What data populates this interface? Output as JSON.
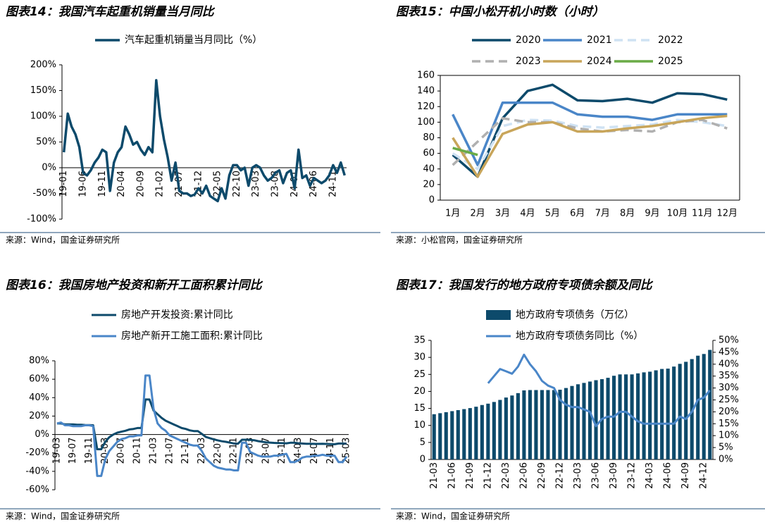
{
  "chart_data": [
    {
      "type": "line",
      "title": "图表14：我国汽车起重机销量当月同比",
      "source": "来源：Wind，国金证券研究所",
      "categories": [
        "19-01",
        null,
        null,
        null,
        null,
        "19-06",
        null,
        null,
        null,
        null,
        "19-11",
        null,
        null,
        null,
        null,
        "20-04",
        null,
        null,
        null,
        null,
        "20-09",
        null,
        null,
        null,
        null,
        "21-02",
        null,
        null,
        null,
        null,
        "21-07",
        null,
        null,
        null,
        null,
        "21-12",
        null,
        null,
        null,
        null,
        "22-05",
        null,
        null,
        null,
        null,
        "22-10",
        null,
        null,
        null,
        null,
        "23-03",
        null,
        null,
        null,
        null,
        "23-08",
        null,
        null,
        null,
        null,
        "24-01",
        null,
        null,
        null,
        null,
        "24-06",
        null,
        null,
        null,
        null,
        "24-11",
        null,
        null,
        null
      ],
      "series": [
        {
          "name": "汽车起重机销量当月同比（%）",
          "color": "#0d4a6b",
          "values": [
            30,
            105,
            80,
            65,
            40,
            -10,
            -15,
            -5,
            10,
            20,
            35,
            30,
            -45,
            10,
            30,
            40,
            80,
            65,
            45,
            50,
            35,
            25,
            40,
            30,
            170,
            100,
            55,
            20,
            -25,
            10,
            -45,
            -50,
            -50,
            -55,
            -52,
            -40,
            -50,
            -35,
            -55,
            -60,
            -65,
            -40,
            -60,
            -15,
            5,
            5,
            -5,
            0,
            -35,
            0,
            5,
            0,
            -15,
            -25,
            -20,
            -10,
            -5,
            -30,
            -10,
            -5,
            -40,
            35,
            -20,
            -15,
            -35,
            -20,
            -25,
            -30,
            -25,
            -15,
            5,
            -10,
            10,
            -15
          ]
        }
      ],
      "ylim": [
        -100,
        200
      ],
      "yticks": [
        {
          "value": -100,
          "label": "-100%"
        },
        {
          "value": -50,
          "label": "-50%"
        },
        {
          "value": 0,
          "label": "0%"
        },
        {
          "value": 50,
          "label": "50%"
        },
        {
          "value": 100,
          "label": "100%"
        },
        {
          "value": 150,
          "label": "150%"
        },
        {
          "value": 200,
          "label": "200%"
        }
      ]
    },
    {
      "type": "line",
      "title": "图表15：中国小松开机小时数（小时）",
      "source": "来源：小松官网，国金证券研究所",
      "categories": [
        "1月",
        "2月",
        "3月",
        "4月",
        "5月",
        "6月",
        "7月",
        "8月",
        "9月",
        "10月",
        "11月",
        "12月"
      ],
      "series": [
        {
          "name": "2020",
          "color": "#0d4a6b",
          "values": [
            58,
            30,
            105,
            140,
            148,
            128,
            127,
            130,
            125,
            137,
            136,
            129
          ]
        },
        {
          "name": "2021",
          "color": "#4a86c8",
          "values": [
            110,
            45,
            125,
            125,
            125,
            110,
            107,
            107,
            103,
            110,
            110,
            110
          ]
        },
        {
          "name": "2022",
          "color": "#cfe2f3",
          "dashed": true,
          "values": [
            60,
            40,
            95,
            103,
            102,
            95,
            93,
            95,
            97,
            103,
            100,
            95
          ]
        },
        {
          "name": "2023",
          "color": "#b0b0b0",
          "dashed": true,
          "values": [
            45,
            75,
            105,
            100,
            100,
            92,
            88,
            90,
            88,
            100,
            103,
            92
          ]
        },
        {
          "name": "2024",
          "color": "#c8a55a",
          "values": [
            80,
            30,
            85,
            97,
            100,
            88,
            88,
            92,
            95,
            100,
            105,
            108
          ]
        },
        {
          "name": "2025",
          "color": "#6aab46",
          "values": [
            67,
            58,
            null,
            null,
            null,
            null,
            null,
            null,
            null,
            null,
            null,
            null
          ]
        }
      ],
      "ylim": [
        0,
        160
      ],
      "yticks": [
        0,
        20,
        40,
        60,
        80,
        100,
        120,
        140,
        160
      ]
    },
    {
      "type": "line",
      "title": "图表16：我国房地产投资和新开工面积累计同比",
      "source": "来源：Wind，国金证券研究所",
      "categories": [
        "19-03",
        null,
        null,
        null,
        "19-07",
        null,
        null,
        null,
        "19-11",
        null,
        null,
        null,
        "20-03",
        null,
        null,
        null,
        "20-07",
        null,
        null,
        null,
        "20-11",
        null,
        null,
        null,
        "21-03",
        null,
        null,
        null,
        "21-07",
        null,
        null,
        null,
        "21-11",
        null,
        null,
        null,
        "22-03",
        null,
        null,
        null,
        "22-07",
        null,
        null,
        null,
        "22-11",
        null,
        null,
        null,
        "23-03",
        null,
        null,
        null,
        "23-07",
        null,
        null,
        null,
        "23-11",
        null,
        null,
        null,
        "24-03",
        null,
        null,
        null,
        "24-07",
        null,
        null,
        null,
        "24-11",
        null,
        null,
        null,
        "25-03"
      ],
      "series": [
        {
          "name": "房地产开发投资:累计同比",
          "color": "#0d4a6b",
          "values": [
            12,
            12,
            11,
            11,
            11,
            10.5,
            10.5,
            10.3,
            10.2,
            10,
            -16,
            -16,
            -8,
            -3,
            0,
            2,
            3,
            4,
            5.5,
            6,
            7,
            7,
            38,
            38,
            26,
            22,
            18,
            15,
            13,
            11,
            9,
            7,
            6,
            4.5,
            3.7,
            3.7,
            0.7,
            -2.7,
            -4,
            -5.4,
            -6.4,
            -7.4,
            -8,
            -8.8,
            -9.8,
            -10,
            -5.7,
            -5.7,
            -5.8,
            -6.2,
            -7.2,
            -7.9,
            -8.5,
            -8.8,
            -9.1,
            -9.3,
            -9.4,
            -9.6,
            -9,
            -9,
            -9.5,
            -9.8,
            -10.1,
            -10.1,
            -10.2,
            -10.2,
            -10.1,
            -10.3,
            -10.4,
            -10.6,
            -9.8,
            -9.8,
            -9.9
          ]
        },
        {
          "name": "房地产新开工施工面积:累计同比",
          "color": "#4a86c8",
          "values": [
            12,
            13,
            10,
            10,
            9,
            9,
            9,
            10,
            10,
            9,
            -45,
            -45,
            -27,
            -18,
            -13,
            -8,
            -5,
            -4,
            -2,
            -2,
            -1,
            -1,
            64,
            64,
            28,
            12,
            7,
            4,
            -1,
            -3,
            -5,
            -7,
            -9,
            -11,
            -12,
            -12,
            -18,
            -26,
            -30,
            -34,
            -36,
            -37,
            -38,
            -38,
            -39,
            -39,
            -9,
            -9,
            -19,
            -21,
            -23,
            -24,
            -24,
            -24,
            -23,
            -23,
            -22,
            -21,
            -30,
            -30,
            -28,
            -25,
            -24,
            -24,
            -23,
            -23,
            -22,
            -23,
            -23,
            -23,
            -30,
            -30,
            -24
          ]
        }
      ],
      "ylim": [
        -60,
        80
      ],
      "yticks": [
        {
          "value": -60,
          "label": "-60%"
        },
        {
          "value": -40,
          "label": "-40%"
        },
        {
          "value": -20,
          "label": "-20%"
        },
        {
          "value": 0,
          "label": "0%"
        },
        {
          "value": 20,
          "label": "20%"
        },
        {
          "value": 40,
          "label": "40%"
        },
        {
          "value": 60,
          "label": "60%"
        },
        {
          "value": 80,
          "label": "80%"
        }
      ]
    },
    {
      "type": "bar",
      "title": "图表17：我国发行的地方政府专项债余额及同比",
      "source": "来源：Wind，国金证券研究所",
      "categories": [
        "21-03",
        null,
        null,
        "21-06",
        null,
        null,
        "21-09",
        null,
        null,
        "21-12",
        null,
        null,
        "22-03",
        null,
        null,
        "22-06",
        null,
        null,
        "22-09",
        null,
        null,
        "22-12",
        null,
        null,
        "23-03",
        null,
        null,
        "23-06",
        null,
        null,
        "23-09",
        null,
        null,
        "23-12",
        null,
        null,
        "24-03",
        null,
        null,
        "24-06",
        null,
        null,
        "24-09",
        null,
        null,
        "24-12",
        null
      ],
      "series": [
        {
          "name": "地方政府专项债务（万亿）",
          "type": "bar",
          "color": "#0d4a6b",
          "values": [
            13.3,
            13.6,
            13.9,
            14.2,
            14.5,
            14.8,
            15.1,
            15.5,
            16.0,
            16.4,
            16.9,
            17.5,
            18.2,
            18.8,
            19.5,
            20.3,
            20.4,
            20.4,
            20.4,
            20.4,
            20.4,
            20.5,
            21.0,
            21.6,
            22.1,
            22.5,
            22.9,
            23.3,
            23.6,
            24.0,
            24.6,
            25.0,
            25.0,
            25.0,
            25.3,
            25.6,
            25.8,
            26.2,
            26.6,
            26.7,
            27.3,
            28.1,
            28.7,
            29.5,
            30.5,
            31.0,
            32.2
          ]
        },
        {
          "name": "地方政府专项债务同比（%）",
          "type": "line",
          "axis": "y2",
          "color": "#4a86c8",
          "values": [
            null,
            null,
            null,
            null,
            null,
            null,
            null,
            null,
            null,
            32,
            35,
            38,
            37,
            36,
            39,
            44,
            40,
            37,
            33,
            31,
            30,
            25,
            23,
            22,
            22,
            21,
            20,
            14,
            17,
            18,
            18,
            20,
            20,
            18,
            16,
            15,
            15,
            15,
            15,
            15,
            15,
            18,
            17,
            20,
            25,
            26,
            29
          ]
        }
      ],
      "ylim": [
        0,
        35
      ],
      "yticks": [
        0,
        5,
        10,
        15,
        20,
        25,
        30,
        35
      ],
      "y2lim": [
        0,
        50
      ],
      "y2ticks": [
        {
          "value": 0,
          "label": "0%"
        },
        {
          "value": 5,
          "label": "5%"
        },
        {
          "value": 10,
          "label": "10%"
        },
        {
          "value": 15,
          "label": "15%"
        },
        {
          "value": 20,
          "label": "20%"
        },
        {
          "value": 25,
          "label": "25%"
        },
        {
          "value": 30,
          "label": "30%"
        },
        {
          "value": 35,
          "label": "35%"
        },
        {
          "value": 40,
          "label": "40%"
        },
        {
          "value": 45,
          "label": "45%"
        },
        {
          "value": 50,
          "label": "50%"
        }
      ]
    }
  ]
}
